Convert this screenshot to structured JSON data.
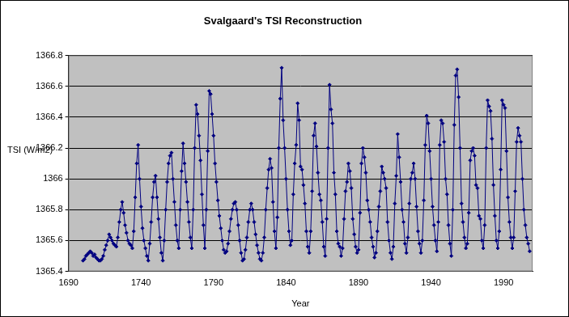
{
  "chart_data": {
    "type": "line",
    "title": "Svalgaard's TSI Reconstruction",
    "x_label": "Year",
    "y_label": "TSI (W/m2)",
    "x": [
      1700,
      1701,
      1702,
      1703,
      1704,
      1705,
      1706,
      1707,
      1708,
      1709,
      1710,
      1711,
      1712,
      1713,
      1714,
      1715,
      1716,
      1717,
      1718,
      1719,
      1720,
      1721,
      1722,
      1723,
      1724,
      1725,
      1726,
      1727,
      1728,
      1729,
      1730,
      1731,
      1732,
      1733,
      1734,
      1735,
      1736,
      1737,
      1738,
      1739,
      1740,
      1741,
      1742,
      1743,
      1744,
      1745,
      1746,
      1747,
      1748,
      1749,
      1750,
      1751,
      1752,
      1753,
      1754,
      1755,
      1756,
      1757,
      1758,
      1759,
      1760,
      1761,
      1762,
      1763,
      1764,
      1765,
      1766,
      1767,
      1768,
      1769,
      1770,
      1771,
      1772,
      1773,
      1774,
      1775,
      1776,
      1777,
      1778,
      1779,
      1780,
      1781,
      1782,
      1783,
      1784,
      1785,
      1786,
      1787,
      1788,
      1789,
      1790,
      1791,
      1792,
      1793,
      1794,
      1795,
      1796,
      1797,
      1798,
      1799,
      1800,
      1801,
      1802,
      1803,
      1804,
      1805,
      1806,
      1807,
      1808,
      1809,
      1810,
      1811,
      1812,
      1813,
      1814,
      1815,
      1816,
      1817,
      1818,
      1819,
      1820,
      1821,
      1822,
      1823,
      1824,
      1825,
      1826,
      1827,
      1828,
      1829,
      1830,
      1831,
      1832,
      1833,
      1834,
      1835,
      1836,
      1837,
      1838,
      1839,
      1840,
      1841,
      1842,
      1843,
      1844,
      1845,
      1846,
      1847,
      1848,
      1849,
      1850,
      1851,
      1852,
      1853,
      1854,
      1855,
      1856,
      1857,
      1858,
      1859,
      1860,
      1861,
      1862,
      1863,
      1864,
      1865,
      1866,
      1867,
      1868,
      1869,
      1870,
      1871,
      1872,
      1873,
      1874,
      1875,
      1876,
      1877,
      1878,
      1879,
      1880,
      1881,
      1882,
      1883,
      1884,
      1885,
      1886,
      1887,
      1888,
      1889,
      1890,
      1891,
      1892,
      1893,
      1894,
      1895,
      1896,
      1897,
      1898,
      1899,
      1900,
      1901,
      1902,
      1903,
      1904,
      1905,
      1906,
      1907,
      1908,
      1909,
      1910,
      1911,
      1912,
      1913,
      1914,
      1915,
      1916,
      1917,
      1918,
      1919,
      1920,
      1921,
      1922,
      1923,
      1924,
      1925,
      1926,
      1927,
      1928,
      1929,
      1930,
      1931,
      1932,
      1933,
      1934,
      1935,
      1936,
      1937,
      1938,
      1939,
      1940,
      1941,
      1942,
      1943,
      1944,
      1945,
      1946,
      1947,
      1948,
      1949,
      1950,
      1951,
      1952,
      1953,
      1954,
      1955,
      1956,
      1957,
      1958,
      1959,
      1960,
      1961,
      1962,
      1963,
      1964,
      1965,
      1966,
      1967,
      1968,
      1969,
      1970,
      1971,
      1972,
      1973,
      1974,
      1975,
      1976,
      1977,
      1978,
      1979,
      1980,
      1981,
      1982,
      1983,
      1984,
      1985,
      1986,
      1987,
      1988,
      1989,
      1990,
      1991,
      1992,
      1993,
      1994,
      1995,
      1996,
      1997,
      1998,
      1999,
      2000,
      2001,
      2002,
      2003,
      2004,
      2005,
      2006,
      2007,
      2008
    ],
    "values": [
      1365.47,
      1365.48,
      1365.5,
      1365.51,
      1365.52,
      1365.53,
      1365.52,
      1365.5,
      1365.51,
      1365.49,
      1365.48,
      1365.47,
      1365.47,
      1365.48,
      1365.5,
      1365.54,
      1365.57,
      1365.6,
      1365.64,
      1365.62,
      1365.6,
      1365.58,
      1365.57,
      1365.56,
      1365.62,
      1365.72,
      1365.8,
      1365.85,
      1365.78,
      1365.7,
      1365.65,
      1365.6,
      1365.58,
      1365.57,
      1365.55,
      1365.66,
      1365.88,
      1366.1,
      1366.22,
      1366.0,
      1365.82,
      1365.68,
      1365.6,
      1365.55,
      1365.5,
      1365.47,
      1365.58,
      1365.72,
      1365.88,
      1365.98,
      1366.02,
      1365.88,
      1365.74,
      1365.62,
      1365.52,
      1365.47,
      1365.6,
      1365.8,
      1365.98,
      1366.1,
      1366.15,
      1366.17,
      1366.0,
      1365.85,
      1365.7,
      1365.6,
      1365.55,
      1365.8,
      1366.05,
      1366.23,
      1366.1,
      1365.98,
      1365.85,
      1365.72,
      1365.62,
      1365.55,
      1365.8,
      1366.2,
      1366.48,
      1366.42,
      1366.28,
      1366.12,
      1365.9,
      1365.7,
      1365.55,
      1365.8,
      1366.18,
      1366.57,
      1366.55,
      1366.42,
      1366.28,
      1366.1,
      1365.98,
      1365.86,
      1365.76,
      1365.68,
      1365.6,
      1365.54,
      1365.52,
      1365.53,
      1365.58,
      1365.66,
      1365.74,
      1365.8,
      1365.84,
      1365.85,
      1365.8,
      1365.7,
      1365.6,
      1365.52,
      1365.47,
      1365.48,
      1365.54,
      1365.62,
      1365.72,
      1365.8,
      1365.84,
      1365.8,
      1365.72,
      1365.64,
      1365.57,
      1365.52,
      1365.48,
      1365.47,
      1365.52,
      1365.62,
      1365.8,
      1365.94,
      1366.06,
      1366.13,
      1366.07,
      1365.85,
      1365.66,
      1365.55,
      1365.75,
      1366.2,
      1366.52,
      1366.72,
      1366.38,
      1366.2,
      1366.0,
      1365.8,
      1365.66,
      1365.57,
      1365.6,
      1365.9,
      1366.1,
      1366.22,
      1366.49,
      1366.38,
      1366.08,
      1366.06,
      1365.96,
      1365.84,
      1365.66,
      1365.56,
      1365.52,
      1365.66,
      1365.92,
      1366.28,
      1366.36,
      1366.21,
      1366.04,
      1365.9,
      1365.86,
      1365.72,
      1365.56,
      1365.5,
      1365.74,
      1366.2,
      1366.61,
      1366.45,
      1366.36,
      1366.04,
      1365.9,
      1365.66,
      1365.58,
      1365.56,
      1365.5,
      1365.55,
      1365.74,
      1365.92,
      1365.98,
      1366.1,
      1366.05,
      1365.94,
      1365.74,
      1365.64,
      1365.56,
      1365.52,
      1365.54,
      1365.78,
      1366.1,
      1366.2,
      1366.14,
      1366.04,
      1365.86,
      1365.8,
      1365.72,
      1365.62,
      1365.56,
      1365.49,
      1365.52,
      1365.66,
      1365.82,
      1365.92,
      1366.08,
      1366.04,
      1366.0,
      1365.94,
      1365.72,
      1365.6,
      1365.52,
      1365.48,
      1365.56,
      1365.84,
      1366.02,
      1366.29,
      1366.14,
      1365.98,
      1365.8,
      1365.72,
      1365.58,
      1365.52,
      1365.62,
      1365.84,
      1366.0,
      1366.04,
      1366.1,
      1366.0,
      1365.82,
      1365.66,
      1365.58,
      1365.52,
      1365.6,
      1365.86,
      1366.22,
      1366.41,
      1366.36,
      1366.18,
      1366.0,
      1365.82,
      1365.7,
      1365.6,
      1365.53,
      1365.72,
      1366.22,
      1366.38,
      1366.36,
      1366.24,
      1366.0,
      1365.9,
      1365.7,
      1365.58,
      1365.5,
      1365.8,
      1366.35,
      1366.67,
      1366.71,
      1366.53,
      1366.2,
      1365.84,
      1365.72,
      1365.62,
      1365.55,
      1365.58,
      1365.78,
      1366.12,
      1366.18,
      1366.2,
      1366.15,
      1365.96,
      1365.94,
      1365.76,
      1365.74,
      1365.6,
      1365.55,
      1365.7,
      1366.2,
      1366.51,
      1366.47,
      1366.44,
      1366.26,
      1365.96,
      1365.76,
      1365.6,
      1365.55,
      1365.66,
      1366.06,
      1366.51,
      1366.48,
      1366.46,
      1366.18,
      1365.88,
      1365.72,
      1365.62,
      1365.55,
      1365.62,
      1365.92,
      1366.24,
      1366.33,
      1366.28,
      1366.24,
      1366.0,
      1365.8,
      1365.7,
      1365.62,
      1365.58,
      1365.53
    ],
    "color": "#000080",
    "marker": "diamond",
    "line_style": "solid",
    "xlim": [
      1690,
      2010
    ],
    "xticks": [
      1690,
      1740,
      1790,
      1840,
      1890,
      1940,
      1990
    ],
    "ylim": [
      1365.4,
      1366.8
    ],
    "yticks": [
      1365.4,
      1365.6,
      1365.8,
      1366,
      1366.2,
      1366.4,
      1366.6,
      1366.8
    ],
    "grid": true
  }
}
